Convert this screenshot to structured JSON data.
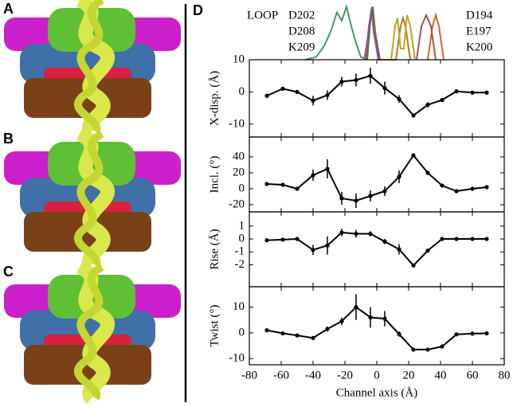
{
  "panel_labels": [
    "A",
    "B",
    "C",
    "D"
  ],
  "chart_data": [
    {
      "type": "line",
      "xlim": [
        -80,
        80
      ],
      "ylim": [
        0,
        1
      ],
      "series": [
        {
          "name": "LOOP",
          "color": "#3f9a6a",
          "x": [
            -45,
            -38,
            -33,
            -29,
            -25,
            -22,
            -19,
            -16,
            -13,
            -10,
            -6
          ],
          "values": [
            0,
            0.05,
            0.25,
            0.5,
            0.85,
            0.7,
            0.95,
            0.6,
            0.3,
            0.05,
            0
          ]
        },
        {
          "name": "D202",
          "color": "#c0761e",
          "x": [
            -8,
            -5,
            -3.5,
            -2,
            1,
            12,
            15,
            16.5,
            18,
            21
          ],
          "values": [
            0,
            0.5,
            0.9,
            0.5,
            0,
            0,
            0.6,
            0.75,
            0.6,
            0
          ]
        },
        {
          "name": "D208",
          "color": "#8a4fb0",
          "x": [
            -7,
            -5,
            -3,
            -1,
            1
          ],
          "values": [
            0,
            0.6,
            0.95,
            0.4,
            0
          ]
        },
        {
          "name": "K209",
          "color": "#666666",
          "x": [
            -6,
            -4,
            -2.5,
            -1,
            2
          ],
          "values": [
            0,
            0.7,
            0.95,
            0.5,
            0
          ]
        },
        {
          "name": "D194",
          "color": "#d0652a",
          "x": [
            32,
            35,
            37,
            39,
            42
          ],
          "values": [
            0,
            0.6,
            0.8,
            0.6,
            0
          ]
        },
        {
          "name": "E197",
          "color": "#9a5a4a",
          "x": [
            25,
            28,
            31,
            34,
            37
          ],
          "values": [
            0,
            0.6,
            0.8,
            0.6,
            0
          ]
        },
        {
          "name": "K200",
          "color": "#b8a820",
          "x": [
            9,
            11.5,
            13,
            15,
            17,
            19,
            21,
            24
          ],
          "values": [
            0,
            0.6,
            0.75,
            0.2,
            0.2,
            0.8,
            0.6,
            0
          ]
        }
      ]
    },
    {
      "type": "errorline",
      "ylabel": "X-disp. (Å)",
      "color": "#000000",
      "xlim": [
        -80,
        80
      ],
      "xticks": [
        -80,
        -60,
        -40,
        -20,
        0,
        20,
        40,
        60,
        80
      ],
      "ylim": [
        -14,
        10
      ],
      "yticks": [
        -10,
        0,
        10
      ],
      "x": [
        -69,
        -59,
        -50,
        -40,
        -31,
        -22,
        -13,
        -4,
        5,
        14,
        23,
        32,
        41,
        50,
        60,
        69
      ],
      "values": [
        -1.2,
        1,
        0,
        -2.7,
        -1,
        3.2,
        3.7,
        5,
        1.2,
        -2.2,
        -7.3,
        -4,
        -2.5,
        0.2,
        -0.2,
        -0.2
      ],
      "errors": [
        0.3,
        0.3,
        0.3,
        1.5,
        1.5,
        1.5,
        2,
        2.5,
        2,
        1.2,
        0.6,
        0.8,
        0.6,
        0.3,
        0.3,
        0.3
      ]
    },
    {
      "type": "errorline",
      "ylabel": "Incl. (°)",
      "color": "#000000",
      "xlim": [
        -80,
        80
      ],
      "xticks": [
        -80,
        -60,
        -40,
        -20,
        0,
        20,
        40,
        60,
        80
      ],
      "ylim": [
        -29,
        65
      ],
      "yticks": [
        -20,
        0,
        20,
        40
      ],
      "x": [
        -69,
        -59,
        -50,
        -40,
        -31,
        -22,
        -13,
        -4,
        5,
        14,
        23,
        32,
        41,
        50,
        60,
        69
      ],
      "values": [
        6,
        5,
        0,
        17,
        25,
        -12,
        -15,
        -9,
        -3,
        15,
        42,
        20,
        4,
        -3,
        0,
        2
      ],
      "errors": [
        1,
        1,
        1,
        7,
        12,
        8,
        9,
        7,
        6,
        8,
        2,
        2,
        2,
        1,
        1,
        1
      ]
    },
    {
      "type": "errorline",
      "ylabel": "Rise (Å)",
      "color": "#000000",
      "xlim": [
        -80,
        80
      ],
      "xticks": [
        -80,
        -60,
        -40,
        -20,
        0,
        20,
        40,
        60,
        80
      ],
      "ylim": [
        -3.7,
        2.1
      ],
      "yticks": [
        -2,
        -1,
        0,
        1
      ],
      "x": [
        -69,
        -59,
        -50,
        -40,
        -31,
        -22,
        -13,
        -4,
        5,
        14,
        23,
        32,
        41,
        50,
        60,
        69
      ],
      "values": [
        -0.1,
        -0.05,
        0,
        -0.85,
        -0.5,
        0.5,
        0.4,
        0.4,
        -0.2,
        -0.8,
        -2.05,
        -0.9,
        0,
        0,
        0,
        0
      ],
      "errors": [
        0.05,
        0.05,
        0.05,
        0.4,
        0.7,
        0.3,
        0.3,
        0.2,
        0.2,
        0.4,
        0.1,
        0.1,
        0.05,
        0.05,
        0.05,
        0.05
      ]
    },
    {
      "type": "errorline",
      "ylabel": "Twist (°)",
      "xlabel": "Channel axis (Å)",
      "color": "#000000",
      "xlim": [
        -80,
        80
      ],
      "xticks": [
        -80,
        -60,
        -40,
        -20,
        0,
        20,
        40,
        60,
        80
      ],
      "ylim": [
        -12.4,
        17.9
      ],
      "yticks": [
        -10,
        0,
        10
      ],
      "x": [
        -69,
        -59,
        -50,
        -40,
        -31,
        -22,
        -13,
        -4,
        5,
        14,
        23,
        32,
        41,
        50,
        60,
        69
      ],
      "values": [
        1,
        -0.2,
        -1,
        -2,
        1.5,
        4.5,
        10,
        6,
        5.5,
        -0.5,
        -6.5,
        -6.5,
        -5.3,
        -0.6,
        -0.3,
        -0.2
      ],
      "errors": [
        0.3,
        0.3,
        0.3,
        0.5,
        1,
        1.5,
        5,
        4,
        3,
        1,
        0.5,
        0.5,
        0.5,
        0.3,
        0.3,
        0.3
      ]
    }
  ]
}
